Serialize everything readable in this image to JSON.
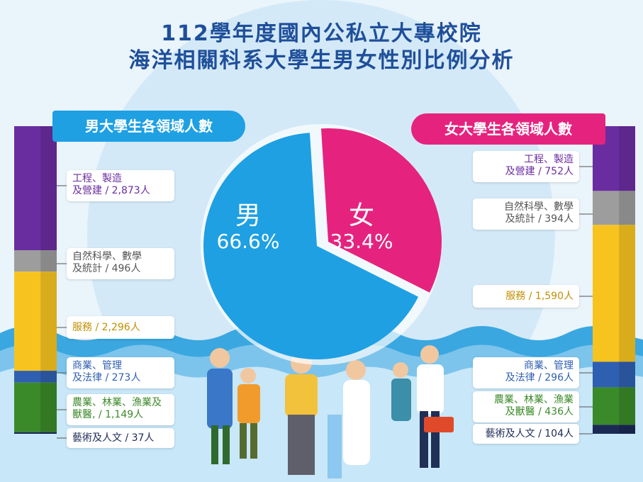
{
  "title": {
    "line1": "112學年度國內公私立大專校院",
    "line2": "海洋相關科系大學生男女性別比例分析"
  },
  "male": {
    "header": "男大學生各領域人數",
    "symbol": "男",
    "pct_label": "66.6%",
    "fields": [
      {
        "key": "eng",
        "line1": "工程、製造",
        "line2": "及營建 / 2,873人"
      },
      {
        "key": "sci",
        "line1": "自然科學、數學",
        "line2": "及統計 / 496人"
      },
      {
        "key": "svc",
        "line1": "服務 / 2,296人",
        "line2": ""
      },
      {
        "key": "biz",
        "line1": "商業、管理",
        "line2": "及法律 / 273人"
      },
      {
        "key": "agr",
        "line1": "農業、林業、漁業及",
        "line2": "獸醫, / 1,149人"
      },
      {
        "key": "art",
        "line1": "藝術及人文 / 37人",
        "line2": ""
      }
    ]
  },
  "female": {
    "header": "女大學生各領域人數",
    "symbol": "女",
    "pct_label": "33.4%",
    "fields": [
      {
        "key": "eng",
        "line1": "工程、製造",
        "line2": "及營建 / 752人"
      },
      {
        "key": "sci",
        "line1": "自然科學、數學",
        "line2": "及統計 / 394人"
      },
      {
        "key": "svc",
        "line1": "服務 / 1,590人",
        "line2": ""
      },
      {
        "key": "biz",
        "line1": "商業、管理",
        "line2": "及法律 / 296人"
      },
      {
        "key": "agr",
        "line1": "農業、林業、漁業",
        "line2": "及獸醫 / 436人"
      },
      {
        "key": "art",
        "line1": "藝術及人文 / 104人",
        "line2": ""
      }
    ]
  },
  "chart_data": [
    {
      "type": "pie",
      "title": "",
      "categories": [
        "男",
        "女"
      ],
      "values": [
        66.6,
        33.4
      ],
      "colors": [
        "#1ea0e3",
        "#e5237f"
      ]
    },
    {
      "type": "bar",
      "title": "男大學生各領域人數",
      "categories": [
        "工程、製造及營建",
        "自然科學、數學及統計",
        "服務",
        "商業、管理及法律",
        "農業、林業、漁業及獸醫",
        "藝術及人文"
      ],
      "values": [
        2873,
        496,
        2296,
        273,
        1149,
        37
      ]
    },
    {
      "type": "bar",
      "title": "女大學生各領域人數",
      "categories": [
        "工程、製造及營建",
        "自然科學、數學及統計",
        "服務",
        "商業、管理及法律",
        "農業、林業、漁業及獸醫",
        "藝術及人文"
      ],
      "values": [
        752,
        394,
        1590,
        296,
        436,
        104
      ]
    }
  ],
  "colors": {
    "eng": "#6a2da0",
    "sci": "#9d9d9d",
    "svc": "#f7c41f",
    "biz": "#2f5fb0",
    "agr": "#3b8a2a",
    "art": "#1b2a55",
    "male": "#1ea0e3",
    "female": "#e5237f",
    "title": "#1f4f9a"
  }
}
